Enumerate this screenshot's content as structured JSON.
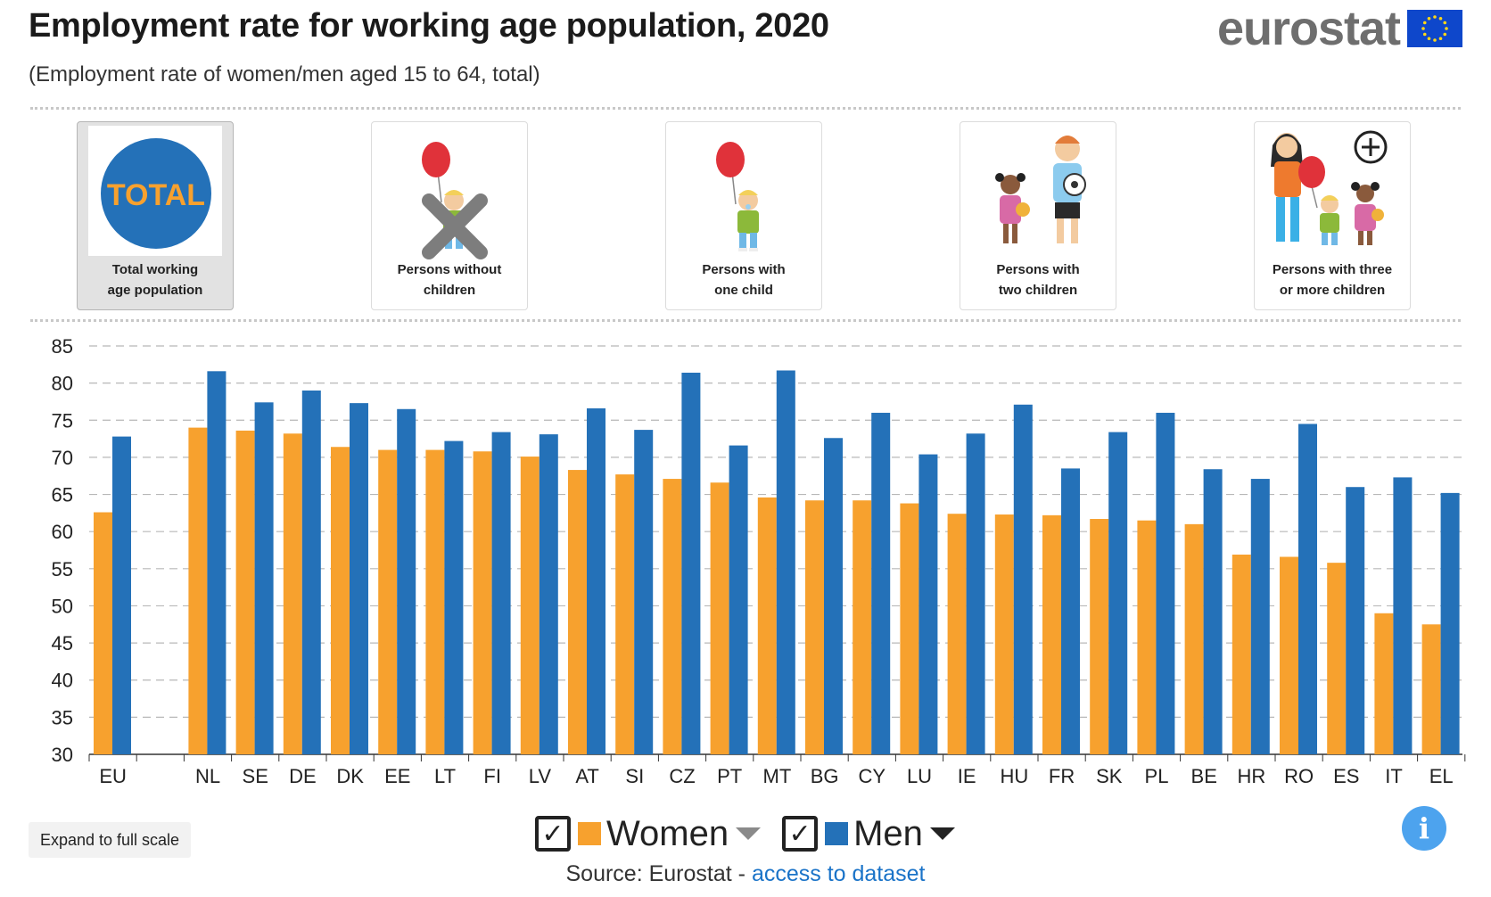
{
  "header": {
    "title": "Employment rate for working age population, 2020",
    "subtitle": "(Employment rate of women/men aged 15 to 64, total)",
    "logo_text": "eurostat"
  },
  "cards": [
    {
      "label_line1": "Total working",
      "label_line2": "age population",
      "badge": "TOTAL",
      "selected": true,
      "icon": "total-circle-icon"
    },
    {
      "label_line1": "Persons without",
      "label_line2": "children",
      "selected": false,
      "icon": "no-children-icon"
    },
    {
      "label_line1": "Persons with",
      "label_line2": "one child",
      "selected": false,
      "icon": "one-child-icon"
    },
    {
      "label_line1": "Persons with",
      "label_line2": "two children",
      "selected": false,
      "icon": "two-children-icon"
    },
    {
      "label_line1": "Persons with three",
      "label_line2": "or more children",
      "selected": false,
      "icon": "three-children-icon"
    }
  ],
  "chart_data": {
    "type": "bar",
    "categories": [
      "EU",
      "NL",
      "SE",
      "DE",
      "DK",
      "EE",
      "LT",
      "FI",
      "LV",
      "AT",
      "SI",
      "CZ",
      "PT",
      "MT",
      "BG",
      "CY",
      "LU",
      "IE",
      "HU",
      "FR",
      "SK",
      "PL",
      "BE",
      "HR",
      "RO",
      "ES",
      "IT",
      "EL"
    ],
    "series": [
      {
        "name": "Women",
        "color": "#f7a12e",
        "values": [
          62.6,
          74.0,
          73.6,
          73.2,
          71.4,
          71.0,
          71.0,
          70.8,
          70.1,
          68.3,
          67.7,
          67.1,
          66.6,
          64.6,
          64.2,
          64.2,
          63.8,
          62.4,
          62.3,
          62.2,
          61.7,
          61.5,
          61.0,
          56.9,
          56.6,
          55.8,
          49.0,
          47.5
        ]
      },
      {
        "name": "Men",
        "color": "#2471b8",
        "values": [
          72.8,
          81.6,
          77.4,
          79.0,
          77.3,
          76.5,
          72.2,
          73.4,
          73.1,
          76.6,
          73.7,
          81.4,
          71.6,
          81.7,
          72.6,
          76.0,
          70.4,
          73.2,
          77.1,
          68.5,
          73.4,
          76.0,
          68.4,
          67.1,
          74.5,
          66.0,
          67.3,
          65.2
        ]
      }
    ],
    "yticks": [
      30,
      35,
      40,
      45,
      50,
      55,
      60,
      65,
      70,
      75,
      80,
      85
    ],
    "ylim": [
      30,
      85
    ],
    "grid": true
  },
  "legend": {
    "women": {
      "label": "Women",
      "checked": "✓"
    },
    "men": {
      "label": "Men",
      "checked": "✓"
    }
  },
  "footer": {
    "source_prefix": "Source: Eurostat - ",
    "source_link": "access to dataset",
    "expand_label": "Expand to full scale",
    "info_label": "i"
  }
}
